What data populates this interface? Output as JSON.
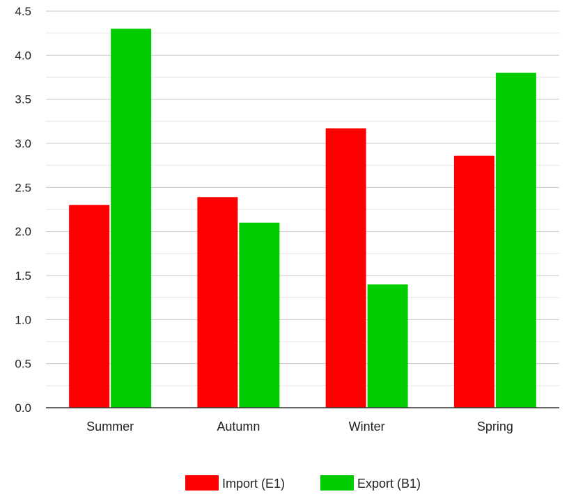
{
  "chart_data": {
    "type": "bar",
    "categories": [
      "Summer",
      "Autumn",
      "Winter",
      "Spring"
    ],
    "series": [
      {
        "name": "Import (E1)",
        "color": "#ff0000",
        "values": [
          2.3,
          2.39,
          3.17,
          2.86
        ]
      },
      {
        "name": "Export (B1)",
        "color": "#00cc00",
        "values": [
          4.3,
          2.1,
          1.4,
          3.8
        ]
      }
    ],
    "yticks": [
      "0.0",
      "0.5",
      "1.0",
      "1.5",
      "2.0",
      "2.5",
      "3.0",
      "3.5",
      "4.0",
      "4.5"
    ],
    "ylim": [
      0,
      4.5
    ],
    "ystep": 0.5,
    "grid": true,
    "legend_position": "bottom"
  }
}
